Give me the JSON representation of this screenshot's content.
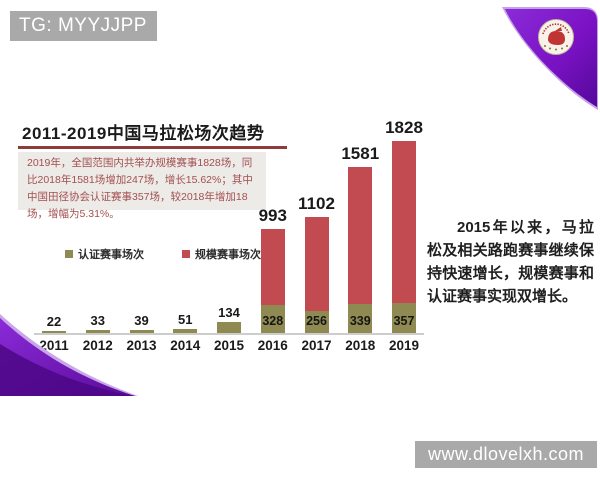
{
  "watermarks": {
    "top_left": "TG: MYYJJPP",
    "bottom_right": "www.dlovelxh.com"
  },
  "slide": {
    "title": "2011-2019中国马拉松场次趋势",
    "description": "2019年，全国范围内共举办规模赛事1828场，同比2018年1581场增加247场，增长15.62%；其中中国田径协会认证赛事357场，较2018年增加18场，增幅为5.31%。",
    "side_note": "2015年以来，马拉松及相关路跑赛事继续保持快速增长，规模赛事和认证赛事实现双增长。",
    "logo": "china-athletics-association-emblem"
  },
  "chart_data": {
    "type": "bar",
    "stacked": true,
    "title": "2011-2019中国马拉松场次趋势",
    "categories": [
      "2011",
      "2012",
      "2013",
      "2014",
      "2015",
      "2016",
      "2017",
      "2018",
      "2019"
    ],
    "series": [
      {
        "name": "认证赛事场次",
        "color": "#8f8a52",
        "values": [
          22,
          33,
          39,
          51,
          134,
          328,
          256,
          339,
          357
        ]
      },
      {
        "name": "规模赛事场次",
        "color": "#c14b50",
        "values": [
          null,
          null,
          null,
          null,
          null,
          993,
          1102,
          1581,
          1828
        ]
      }
    ],
    "bar_top_labels": [
      "22",
      "33",
      "39",
      "51",
      "134",
      "993",
      "1102",
      "1581",
      "1828"
    ],
    "inner_labels": [
      null,
      null,
      null,
      null,
      null,
      "328",
      "256",
      "339",
      "357"
    ],
    "xlabel": "",
    "ylabel": "",
    "grid": false,
    "legend_position": "middle-left",
    "axis": "baseline-only"
  },
  "colors": {
    "certified_bar": "#8f8a52",
    "scale_bar": "#c14b50",
    "accent_maroon": "#8e3b3b",
    "description_text": "#a34f4f",
    "description_bg": "#ecebe8",
    "watermark_bg": "#a9a9a9",
    "ribbon_purple": "#7a12c4",
    "ribbon_purple_dark": "#4c0786"
  }
}
